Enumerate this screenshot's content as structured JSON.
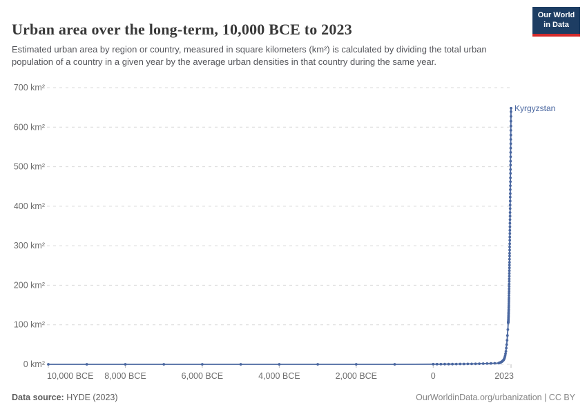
{
  "header": {
    "title": "Urban area over the long-term, 10,000 BCE to 2023",
    "subtitle": "Estimated urban area by region or country, measured in square kilometers (km²) is calculated by dividing the total urban population of a country in a given year by the average urban densities in that country during the same year.",
    "logo": {
      "line1": "Our World",
      "line2": "in Data",
      "bg_color": "#1d3d63",
      "accent_color": "#d42b2b"
    }
  },
  "chart_data": {
    "type": "line",
    "title": "Urban area over the long-term, 10,000 BCE to 2023",
    "xlabel": "",
    "ylabel": "",
    "xlim": [
      -10000,
      2023
    ],
    "ylim": [
      0,
      700
    ],
    "grid": "horizontal-dashed",
    "legend_position": "end-of-line-label",
    "x_ticks": [
      {
        "value": -10000,
        "label": "10,000 BCE"
      },
      {
        "value": -8000,
        "label": "8,000 BCE"
      },
      {
        "value": -6000,
        "label": "6,000 BCE"
      },
      {
        "value": -4000,
        "label": "4,000 BCE"
      },
      {
        "value": -2000,
        "label": "2,000 BCE"
      },
      {
        "value": 0,
        "label": "0"
      },
      {
        "value": 2023,
        "label": "2023"
      }
    ],
    "y_ticks": [
      {
        "value": 0,
        "label": "0 km²"
      },
      {
        "value": 100,
        "label": "100 km²"
      },
      {
        "value": 200,
        "label": "200 km²"
      },
      {
        "value": 300,
        "label": "300 km²"
      },
      {
        "value": 400,
        "label": "400 km²"
      },
      {
        "value": 500,
        "label": "500 km²"
      },
      {
        "value": 600,
        "label": "600 km²"
      },
      {
        "value": 700,
        "label": "700 km²"
      }
    ],
    "series": [
      {
        "name": "Kyrgyzstan",
        "color": "#4a67a0",
        "points": [
          [
            -10000,
            0
          ],
          [
            -9000,
            0
          ],
          [
            -8000,
            0
          ],
          [
            -7000,
            0
          ],
          [
            -6000,
            0
          ],
          [
            -5000,
            0
          ],
          [
            -4000,
            0
          ],
          [
            -3000,
            0
          ],
          [
            -2000,
            0
          ],
          [
            -1000,
            0
          ],
          [
            0,
            0.3
          ],
          [
            100,
            0.35
          ],
          [
            200,
            0.4
          ],
          [
            300,
            0.45
          ],
          [
            400,
            0.5
          ],
          [
            500,
            0.6
          ],
          [
            600,
            0.7
          ],
          [
            700,
            0.8
          ],
          [
            800,
            0.9
          ],
          [
            900,
            1
          ],
          [
            1000,
            1.1
          ],
          [
            1100,
            1.3
          ],
          [
            1200,
            1.5
          ],
          [
            1300,
            1.7
          ],
          [
            1400,
            2
          ],
          [
            1500,
            2.3
          ],
          [
            1600,
            2.6
          ],
          [
            1700,
            3
          ],
          [
            1710,
            3.3
          ],
          [
            1720,
            3.6
          ],
          [
            1730,
            4
          ],
          [
            1740,
            4.4
          ],
          [
            1750,
            4.8
          ],
          [
            1760,
            5.3
          ],
          [
            1770,
            5.9
          ],
          [
            1780,
            6.5
          ],
          [
            1790,
            7.2
          ],
          [
            1800,
            8
          ],
          [
            1810,
            9
          ],
          [
            1820,
            10
          ],
          [
            1830,
            11
          ],
          [
            1840,
            13
          ],
          [
            1850,
            15
          ],
          [
            1860,
            18
          ],
          [
            1870,
            22
          ],
          [
            1880,
            27
          ],
          [
            1890,
            33
          ],
          [
            1900,
            41
          ],
          [
            1910,
            50
          ],
          [
            1920,
            61
          ],
          [
            1930,
            73
          ],
          [
            1940,
            88
          ],
          [
            1950,
            105
          ],
          [
            1951,
            106
          ],
          [
            1952,
            107
          ],
          [
            1953,
            108
          ],
          [
            1954,
            110
          ],
          [
            1955,
            112
          ],
          [
            1956,
            115
          ],
          [
            1957,
            118
          ],
          [
            1958,
            121
          ],
          [
            1959,
            124
          ],
          [
            1960,
            128
          ],
          [
            1961,
            131
          ],
          [
            1962,
            135
          ],
          [
            1963,
            139
          ],
          [
            1964,
            144
          ],
          [
            1965,
            148
          ],
          [
            1966,
            153
          ],
          [
            1967,
            158
          ],
          [
            1968,
            163
          ],
          [
            1969,
            168
          ],
          [
            1970,
            174
          ],
          [
            1971,
            180
          ],
          [
            1972,
            185
          ],
          [
            1973,
            191
          ],
          [
            1974,
            197
          ],
          [
            1975,
            203
          ],
          [
            1976,
            210
          ],
          [
            1977,
            216
          ],
          [
            1978,
            223
          ],
          [
            1979,
            230
          ],
          [
            1980,
            237
          ],
          [
            1981,
            244
          ],
          [
            1982,
            251
          ],
          [
            1983,
            258
          ],
          [
            1984,
            266
          ],
          [
            1985,
            274
          ],
          [
            1986,
            281
          ],
          [
            1987,
            289
          ],
          [
            1988,
            297
          ],
          [
            1989,
            305
          ],
          [
            1990,
            314
          ],
          [
            1991,
            322
          ],
          [
            1992,
            331
          ],
          [
            1993,
            339
          ],
          [
            1994,
            348
          ],
          [
            1995,
            357
          ],
          [
            1996,
            366
          ],
          [
            1997,
            375
          ],
          [
            1998,
            384
          ],
          [
            1999,
            394
          ],
          [
            2000,
            403
          ],
          [
            2001,
            413
          ],
          [
            2002,
            423
          ],
          [
            2003,
            432
          ],
          [
            2004,
            442
          ],
          [
            2005,
            452
          ],
          [
            2006,
            462
          ],
          [
            2007,
            472
          ],
          [
            2008,
            483
          ],
          [
            2009,
            493
          ],
          [
            2010,
            504
          ],
          [
            2011,
            514
          ],
          [
            2012,
            525
          ],
          [
            2013,
            536
          ],
          [
            2014,
            547
          ],
          [
            2015,
            558
          ],
          [
            2016,
            569
          ],
          [
            2017,
            580
          ],
          [
            2018,
            592
          ],
          [
            2019,
            603
          ],
          [
            2020,
            615
          ],
          [
            2021,
            627
          ],
          [
            2022,
            639
          ],
          [
            2023,
            648
          ]
        ]
      }
    ]
  },
  "footer": {
    "datasource_label": "Data source:",
    "datasource_value": " HYDE (2023)",
    "credit": "OurWorldinData.org/urbanization | CC BY"
  }
}
